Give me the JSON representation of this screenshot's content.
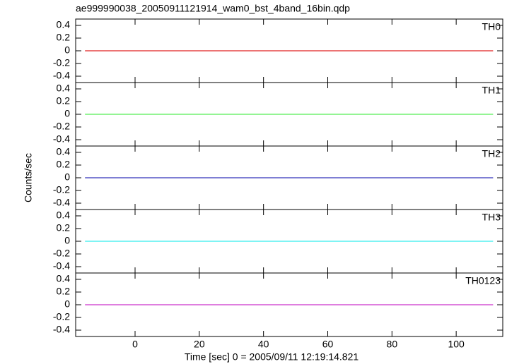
{
  "chart_data": [
    {
      "type": "line",
      "title": "ae999990038_20050911121914_wam0_bst_4band_16bin.qdp",
      "label": "TH0",
      "x": [
        -15.6,
        111.5
      ],
      "series": [
        {
          "name": "TH0",
          "color": "#e02020",
          "values": [
            0,
            0
          ]
        }
      ],
      "xlim": [
        -18.5,
        114.5
      ],
      "xticks": [
        0,
        20,
        40,
        60,
        80,
        100
      ],
      "ylim": [
        -0.5,
        0.5
      ],
      "yticks": [
        -0.4,
        -0.2,
        0,
        0.2,
        0.4
      ]
    },
    {
      "type": "line",
      "label": "TH1",
      "x": [
        -15.6,
        111.5
      ],
      "series": [
        {
          "name": "TH1",
          "color": "#55ee55",
          "values": [
            0,
            0
          ]
        }
      ],
      "xlim": [
        -18.5,
        114.5
      ],
      "xticks": [
        0,
        20,
        40,
        60,
        80,
        100
      ],
      "ylim": [
        -0.5,
        0.5
      ],
      "yticks": [
        -0.4,
        -0.2,
        0,
        0.2,
        0.4
      ]
    },
    {
      "type": "line",
      "label": "TH2",
      "y_label": "Counts/sec",
      "x": [
        -15.6,
        111.5
      ],
      "series": [
        {
          "name": "TH2",
          "color": "#3333bb",
          "values": [
            0,
            0
          ]
        }
      ],
      "xlim": [
        -18.5,
        114.5
      ],
      "xticks": [
        0,
        20,
        40,
        60,
        80,
        100
      ],
      "ylim": [
        -0.5,
        0.5
      ],
      "yticks": [
        -0.4,
        -0.2,
        0,
        0.2,
        0.4
      ]
    },
    {
      "type": "line",
      "label": "TH3",
      "x": [
        -15.6,
        111.5
      ],
      "series": [
        {
          "name": "TH3",
          "color": "#33eeee",
          "values": [
            0,
            0
          ]
        }
      ],
      "xlim": [
        -18.5,
        114.5
      ],
      "xticks": [
        0,
        20,
        40,
        60,
        80,
        100
      ],
      "ylim": [
        -0.5,
        0.5
      ],
      "yticks": [
        -0.4,
        -0.2,
        0,
        0.2,
        0.4
      ]
    },
    {
      "type": "line",
      "label": "TH0123",
      "x_label": "Time [sec] 0 = 2005/09/11 12:19:14.821",
      "x": [
        -15.6,
        111.5
      ],
      "series": [
        {
          "name": "TH0123",
          "color": "#cc33cc",
          "values": [
            0,
            0
          ]
        }
      ],
      "xlim": [
        -18.5,
        114.5
      ],
      "xticks": [
        0,
        20,
        40,
        60,
        80,
        100
      ],
      "ylim": [
        -0.5,
        0.5
      ],
      "yticks": [
        -0.4,
        -0.2,
        0,
        0.2,
        0.4
      ]
    }
  ]
}
